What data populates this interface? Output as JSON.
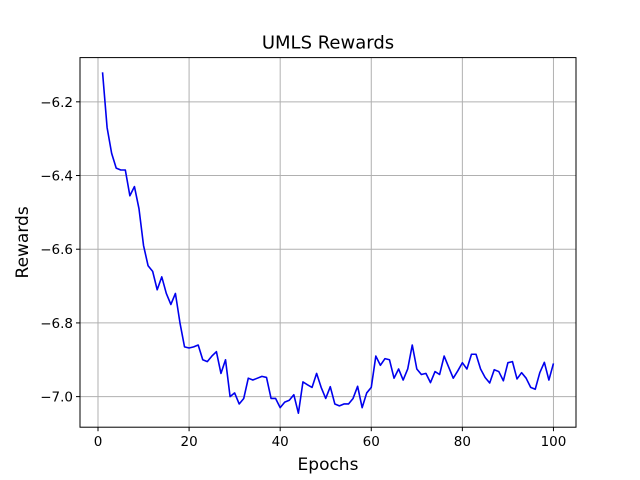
{
  "chart_data": {
    "type": "line",
    "title": "UMLS Rewards",
    "xlabel": "Epochs",
    "ylabel": "Rewards",
    "xlim": [
      -3.95,
      104.95
    ],
    "ylim": [
      -7.083,
      -6.08
    ],
    "xticks": [
      0,
      20,
      40,
      60,
      80,
      100
    ],
    "yticks": [
      -7.0,
      -6.8,
      -6.6,
      -6.4,
      -6.2
    ],
    "xtick_labels": [
      "0",
      "20",
      "40",
      "60",
      "80",
      "100"
    ],
    "ytick_labels": [
      "−7.0",
      "−6.8",
      "−6.6",
      "−6.4",
      "−6.2"
    ],
    "grid": true,
    "series": [
      {
        "color": "#0000ee",
        "x": [
          1,
          2,
          3,
          4,
          5,
          6,
          7,
          8,
          9,
          10,
          11,
          12,
          13,
          14,
          15,
          16,
          17,
          18,
          19,
          20,
          21,
          22,
          23,
          24,
          25,
          26,
          27,
          28,
          29,
          30,
          31,
          32,
          33,
          34,
          35,
          36,
          37,
          38,
          39,
          40,
          41,
          42,
          43,
          44,
          45,
          46,
          47,
          48,
          49,
          50,
          51,
          52,
          53,
          54,
          55,
          56,
          57,
          58,
          59,
          60,
          61,
          62,
          63,
          64,
          65,
          66,
          67,
          68,
          69,
          70,
          71,
          72,
          73,
          74,
          75,
          76,
          77,
          78,
          79,
          80,
          81,
          82,
          83,
          84,
          85,
          86,
          87,
          88,
          89,
          90,
          91,
          92,
          93,
          94,
          95,
          96,
          97,
          98,
          99,
          100
        ],
        "values": [
          -6.12,
          -6.27,
          -6.34,
          -6.38,
          -6.385,
          -6.385,
          -6.455,
          -6.43,
          -6.49,
          -6.59,
          -6.645,
          -6.66,
          -6.71,
          -6.675,
          -6.72,
          -6.75,
          -6.72,
          -6.8,
          -6.865,
          -6.868,
          -6.865,
          -6.86,
          -6.9,
          -6.905,
          -6.89,
          -6.878,
          -6.937,
          -6.9,
          -7.0,
          -6.99,
          -7.02,
          -7.005,
          -6.95,
          -6.955,
          -6.95,
          -6.945,
          -6.948,
          -7.005,
          -7.005,
          -7.03,
          -7.015,
          -7.01,
          -6.995,
          -7.045,
          -6.96,
          -6.968,
          -6.975,
          -6.937,
          -6.975,
          -7.005,
          -6.973,
          -7.02,
          -7.025,
          -7.02,
          -7.02,
          -7.005,
          -6.972,
          -7.03,
          -6.99,
          -6.975,
          -6.89,
          -6.915,
          -6.897,
          -6.9,
          -6.95,
          -6.925,
          -6.955,
          -6.925,
          -6.86,
          -6.925,
          -6.94,
          -6.937,
          -6.962,
          -6.932,
          -6.94,
          -6.89,
          -6.92,
          -6.95,
          -6.93,
          -6.908,
          -6.925,
          -6.885,
          -6.885,
          -6.925,
          -6.948,
          -6.963,
          -6.927,
          -6.932,
          -6.957,
          -6.908,
          -6.905,
          -6.952,
          -6.935,
          -6.95,
          -6.975,
          -6.98,
          -6.935,
          -6.907,
          -6.955,
          -6.91
        ]
      }
    ]
  }
}
